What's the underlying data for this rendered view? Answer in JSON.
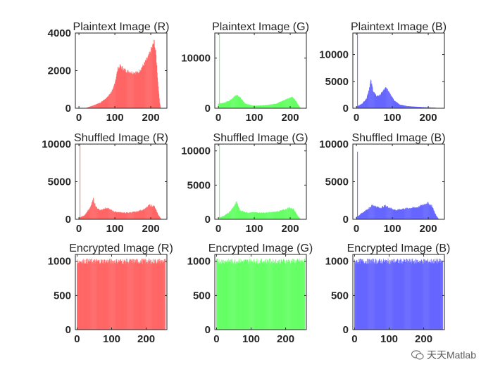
{
  "colors": {
    "red": "#ff6666",
    "green": "#66ff66",
    "blue": "#6666ff",
    "axis": "#262626"
  },
  "watermark": {
    "text": "天天Matlab",
    "icon": "wechat-icon"
  },
  "chart_data": [
    {
      "type": "bar",
      "title": "Plaintext Image (R)",
      "color": "red",
      "xlim": [
        -10,
        245
      ],
      "ylim": [
        0,
        4000
      ],
      "yticks": [
        0,
        2000,
        4000
      ],
      "xticks": [
        0,
        100,
        200
      ],
      "profile": [
        [
          0,
          0
        ],
        [
          18,
          0
        ],
        [
          22,
          30
        ],
        [
          40,
          150
        ],
        [
          60,
          300
        ],
        [
          80,
          600
        ],
        [
          95,
          1000
        ],
        [
          103,
          1600
        ],
        [
          108,
          2100
        ],
        [
          115,
          2250
        ],
        [
          130,
          2000
        ],
        [
          150,
          1900
        ],
        [
          165,
          1900
        ],
        [
          180,
          2300
        ],
        [
          195,
          2800
        ],
        [
          203,
          3200
        ],
        [
          210,
          3550
        ],
        [
          215,
          2800
        ],
        [
          220,
          1400
        ],
        [
          225,
          300
        ],
        [
          228,
          0
        ],
        [
          255,
          0
        ]
      ],
      "spikes": [],
      "noise": 0.05
    },
    {
      "type": "bar",
      "title": "Plaintext Image (G)",
      "color": "green",
      "xlim": [
        -10,
        245
      ],
      "ylim": [
        0,
        15000
      ],
      "yticks": [
        0,
        10000
      ],
      "xticks": [
        0,
        100,
        200
      ],
      "profile": [
        [
          0,
          900
        ],
        [
          15,
          1100
        ],
        [
          30,
          1500
        ],
        [
          45,
          2300
        ],
        [
          50,
          2700
        ],
        [
          60,
          2200
        ],
        [
          75,
          900
        ],
        [
          100,
          500
        ],
        [
          130,
          600
        ],
        [
          160,
          900
        ],
        [
          180,
          1500
        ],
        [
          195,
          2000
        ],
        [
          205,
          2300
        ],
        [
          215,
          1500
        ],
        [
          225,
          400
        ],
        [
          230,
          0
        ],
        [
          255,
          0
        ]
      ],
      "spikes": [
        [
          3,
          15000
        ]
      ],
      "noise": 0.06
    },
    {
      "type": "bar",
      "title": "Plaintext Image (B)",
      "color": "blue",
      "xlim": [
        -10,
        245
      ],
      "ylim": [
        0,
        14000
      ],
      "yticks": [
        0,
        5000,
        10000
      ],
      "xticks": [
        0,
        100,
        200
      ],
      "profile": [
        [
          0,
          300
        ],
        [
          15,
          800
        ],
        [
          28,
          1800
        ],
        [
          35,
          3500
        ],
        [
          40,
          5200
        ],
        [
          47,
          3200
        ],
        [
          55,
          2300
        ],
        [
          65,
          2400
        ],
        [
          75,
          3300
        ],
        [
          82,
          3800
        ],
        [
          92,
          3000
        ],
        [
          105,
          1500
        ],
        [
          120,
          700
        ],
        [
          140,
          400
        ],
        [
          160,
          300
        ],
        [
          190,
          200
        ],
        [
          220,
          100
        ],
        [
          228,
          0
        ],
        [
          255,
          0
        ]
      ],
      "spikes": [
        [
          3,
          14000
        ]
      ],
      "noise": 0.06
    },
    {
      "type": "bar",
      "title": "Shuffled Image (R)",
      "color": "red",
      "xlim": [
        -10,
        245
      ],
      "ylim": [
        0,
        10000
      ],
      "yticks": [
        0,
        5000,
        10000
      ],
      "xticks": [
        0,
        100,
        200
      ],
      "profile": [
        [
          0,
          200
        ],
        [
          15,
          500
        ],
        [
          28,
          1300
        ],
        [
          36,
          2100
        ],
        [
          40,
          2700
        ],
        [
          48,
          1600
        ],
        [
          60,
          1200
        ],
        [
          72,
          1500
        ],
        [
          82,
          1400
        ],
        [
          100,
          1000
        ],
        [
          130,
          850
        ],
        [
          160,
          1000
        ],
        [
          185,
          1400
        ],
        [
          197,
          1900
        ],
        [
          210,
          1700
        ],
        [
          222,
          500
        ],
        [
          230,
          0
        ],
        [
          255,
          0
        ]
      ],
      "spikes": [
        [
          3,
          10000
        ]
      ],
      "noise": 0.08
    },
    {
      "type": "bar",
      "title": "Shuffled Image (G)",
      "color": "green",
      "xlim": [
        -10,
        245
      ],
      "ylim": [
        0,
        11000
      ],
      "yticks": [
        0,
        5000,
        10000
      ],
      "xticks": [
        0,
        100,
        200
      ],
      "profile": [
        [
          0,
          200
        ],
        [
          15,
          500
        ],
        [
          30,
          1000
        ],
        [
          45,
          2000
        ],
        [
          50,
          2600
        ],
        [
          60,
          1300
        ],
        [
          80,
          1000
        ],
        [
          100,
          1000
        ],
        [
          130,
          950
        ],
        [
          160,
          1100
        ],
        [
          185,
          1400
        ],
        [
          197,
          1700
        ],
        [
          210,
          1500
        ],
        [
          222,
          400
        ],
        [
          230,
          0
        ],
        [
          255,
          0
        ]
      ],
      "spikes": [
        [
          3,
          11000
        ]
      ],
      "noise": 0.08
    },
    {
      "type": "bar",
      "title": "Shuffled Image (B)",
      "color": "blue",
      "xlim": [
        -10,
        245
      ],
      "ylim": [
        0,
        10000
      ],
      "yticks": [
        0,
        5000,
        10000
      ],
      "xticks": [
        0,
        100,
        200
      ],
      "profile": [
        [
          0,
          300
        ],
        [
          15,
          800
        ],
        [
          30,
          1300
        ],
        [
          45,
          1900
        ],
        [
          50,
          1800
        ],
        [
          65,
          1500
        ],
        [
          80,
          1800
        ],
        [
          95,
          1500
        ],
        [
          110,
          1200
        ],
        [
          130,
          1400
        ],
        [
          150,
          1500
        ],
        [
          170,
          1600
        ],
        [
          185,
          1900
        ],
        [
          197,
          2200
        ],
        [
          210,
          1800
        ],
        [
          222,
          500
        ],
        [
          230,
          0
        ],
        [
          255,
          0
        ]
      ],
      "spikes": [
        [
          3,
          9000
        ]
      ],
      "noise": 0.08
    },
    {
      "type": "bar",
      "title": "Encrypted Image (R)",
      "color": "red",
      "xlim": [
        -5,
        260
      ],
      "ylim": [
        0,
        1100
      ],
      "yticks": [
        0,
        500,
        1000
      ],
      "xticks": [
        0,
        100,
        200
      ],
      "profile": [
        [
          0,
          1000
        ],
        [
          255,
          1000
        ]
      ],
      "spikes": [],
      "noise": 0.04
    },
    {
      "type": "bar",
      "title": "Encrypted Image (G)",
      "color": "green",
      "xlim": [
        -5,
        260
      ],
      "ylim": [
        0,
        1100
      ],
      "yticks": [
        0,
        500,
        1000
      ],
      "xticks": [
        0,
        100,
        200
      ],
      "profile": [
        [
          0,
          1000
        ],
        [
          255,
          1000
        ]
      ],
      "spikes": [],
      "noise": 0.04
    },
    {
      "type": "bar",
      "title": "Encrypted Image (B)",
      "color": "blue",
      "xlim": [
        -5,
        260
      ],
      "ylim": [
        0,
        1100
      ],
      "yticks": [
        0,
        500,
        1000
      ],
      "xticks": [
        0,
        100,
        200
      ],
      "profile": [
        [
          0,
          1000
        ],
        [
          255,
          1000
        ]
      ],
      "spikes": [],
      "noise": 0.04
    }
  ]
}
